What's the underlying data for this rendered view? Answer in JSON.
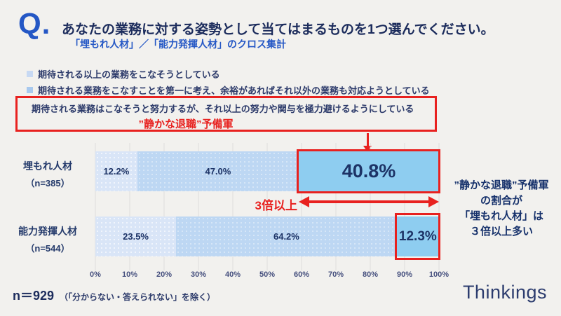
{
  "colors": {
    "background": "#f2f1ee",
    "accent_red": "#e8211f",
    "accent_blue": "#2457c5",
    "navy_text": "#1c2c5c",
    "segment_1": "#d9e5f7",
    "segment_2": "#bdd7f3",
    "segment_3": "#8ecdf0"
  },
  "header": {
    "q_mark": "Q.",
    "title": "あなたの業務に対する姿勢として当てはまるものを1つ選んでください。",
    "subtitle": "「埋もれ人材」／「能力発揮人材」のクロス集計"
  },
  "legend": {
    "items": [
      {
        "label": "期待される以上の業務をこなそうとしている",
        "color": "#c7d9f3"
      },
      {
        "label": "期待される業務をこなすことを第一に考え、余裕があればそれ以外の業務も対応ようとしている",
        "color": "#a8c9ee"
      },
      {
        "label": "期待される業務はこなそうと努力するが、それ以上の努力や関与を極力避けるようにしている",
        "color": "#8ecdf0"
      }
    ],
    "quiet_quitting_label": "”静かな退職”予備軍"
  },
  "chart_data": {
    "type": "bar",
    "stacked": true,
    "orientation": "horizontal",
    "title": "あなたの業務に対する姿勢として当てはまるものを1つ選んでください。",
    "categories": [
      "埋もれ人材（n=385）",
      "能力発揮人材（n=544）"
    ],
    "series": [
      {
        "name": "期待される以上の業務をこなそうとしている",
        "values": [
          12.2,
          23.5
        ],
        "color": "#d9e5f7"
      },
      {
        "name": "期待される業務をこなすことを第一に考え、余裕があればそれ以外の業務も対応ようとしている",
        "values": [
          47.0,
          64.2
        ],
        "color": "#bdd7f3"
      },
      {
        "name": "期待される業務はこなそうと努力するが、それ以上の努力や関与を極力避けるようにしている",
        "values": [
          40.8,
          12.3
        ],
        "color": "#8ecdf0"
      }
    ],
    "x_ticks": [
      "0%",
      "10%",
      "20%",
      "30%",
      "40%",
      "50%",
      "60%",
      "70%",
      "80%",
      "90%",
      "100%"
    ],
    "xlim": [
      0,
      100
    ],
    "grid": true,
    "legend_position": "top"
  },
  "rows": [
    {
      "label": "埋もれ人材",
      "n": "（n=385）",
      "values": [
        "12.2%",
        "47.0%",
        "40.8%"
      ]
    },
    {
      "label": "能力発揮人材",
      "n": "（n=544）",
      "values": [
        "23.5%",
        "64.2%",
        "12.3%"
      ]
    }
  ],
  "annotations": {
    "three_times": "3倍以上",
    "side_note_lines": [
      "”静かな退職”予備軍",
      "の割合が",
      "「埋もれ人材」は",
      "３倍以上多い"
    ]
  },
  "footer": {
    "n_label": "n＝929",
    "n_note": "（「分からない・答えられない」を除く）",
    "logo": "Thinkings"
  }
}
